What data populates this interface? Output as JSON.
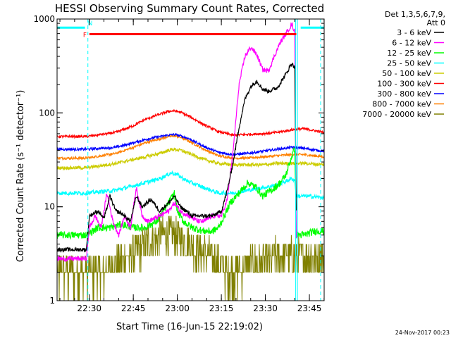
{
  "chart_data": {
    "type": "line",
    "title": "HESSI Observing Summary Count Rates, Corrected",
    "xlabel": "Start Time (16-Jun-15 22:19:02)",
    "ylabel": "Corrected Count Rate (s⁻¹ detector⁻¹)",
    "y_scale": "log",
    "ylim": [
      1,
      1000
    ],
    "xlim_minutes_after_start": [
      0,
      91
    ],
    "x_ticks": [
      {
        "label": "22:30",
        "min": 10.97
      },
      {
        "label": "22:45",
        "min": 25.97
      },
      {
        "label": "23:00",
        "min": 40.97
      },
      {
        "label": "23:15",
        "min": 55.97
      },
      {
        "label": "23:30",
        "min": 70.97
      },
      {
        "label": "23:45",
        "min": 85.97
      }
    ],
    "y_ticks": [
      {
        "label": "1",
        "value": 1
      },
      {
        "label": "10",
        "value": 10
      },
      {
        "label": "100",
        "value": 100
      },
      {
        "label": "1000",
        "value": 1000
      }
    ],
    "legend_header": [
      "Det 1,3,5,6,7,9,",
      "Att 0"
    ],
    "legend_position": "right",
    "footer_date": "24-Nov-2017 00:23",
    "flags": [
      {
        "label": "N",
        "color": "#00ffff",
        "value": 810,
        "segments": [
          [
            0,
            9.5
          ],
          [
            83,
            91
          ]
        ]
      },
      {
        "label": "F",
        "color": "#ff0000",
        "value": 690,
        "segments": [
          [
            11,
            81.5
          ]
        ]
      }
    ],
    "markers": [
      {
        "color": "#00ffff",
        "style": "dashed",
        "min": 10.5
      },
      {
        "color": "#00ffff",
        "style": "solid",
        "min": 81.3
      },
      {
        "color": "#00ffff",
        "style": "solid",
        "min": 81.9
      },
      {
        "color": "#00ffff",
        "style": "dashed",
        "min": 89.8
      }
    ],
    "series": [
      {
        "name": "3 - 6 keV",
        "color": "#000000",
        "noise": 0.05,
        "points": [
          [
            0,
            3.5
          ],
          [
            10,
            3.5
          ],
          [
            11,
            8
          ],
          [
            14,
            9
          ],
          [
            16,
            7.5
          ],
          [
            18,
            13
          ],
          [
            20,
            9
          ],
          [
            22,
            8.5
          ],
          [
            25,
            7
          ],
          [
            27,
            13
          ],
          [
            29,
            10
          ],
          [
            32,
            12
          ],
          [
            35,
            9
          ],
          [
            38,
            11
          ],
          [
            40,
            13
          ],
          [
            42,
            10
          ],
          [
            44,
            9
          ],
          [
            46,
            8
          ],
          [
            50,
            8
          ],
          [
            53,
            8
          ],
          [
            56,
            9
          ],
          [
            58,
            15
          ],
          [
            60,
            30
          ],
          [
            62,
            70
          ],
          [
            64,
            140
          ],
          [
            66,
            190
          ],
          [
            68,
            220
          ],
          [
            70,
            180
          ],
          [
            72,
            170
          ],
          [
            75,
            185
          ],
          [
            78,
            260
          ],
          [
            80,
            340
          ],
          [
            81,
            300
          ],
          [
            81.5,
            8
          ]
        ]
      },
      {
        "name": "6 - 12 keV",
        "color": "#ff00ff",
        "noise": 0.06,
        "points": [
          [
            0,
            2.8
          ],
          [
            10,
            2.8
          ],
          [
            11,
            6
          ],
          [
            13,
            8
          ],
          [
            15,
            6
          ],
          [
            17,
            14
          ],
          [
            19,
            7
          ],
          [
            21,
            5
          ],
          [
            23,
            8
          ],
          [
            25,
            6
          ],
          [
            27,
            16
          ],
          [
            29,
            8
          ],
          [
            31,
            7
          ],
          [
            35,
            8
          ],
          [
            38,
            9
          ],
          [
            40,
            11
          ],
          [
            42,
            9
          ],
          [
            45,
            8
          ],
          [
            48,
            7
          ],
          [
            50,
            7
          ],
          [
            53,
            8
          ],
          [
            56,
            8
          ],
          [
            58,
            12
          ],
          [
            60,
            40
          ],
          [
            62,
            200
          ],
          [
            64,
            400
          ],
          [
            66,
            500
          ],
          [
            68,
            420
          ],
          [
            70,
            290
          ],
          [
            72,
            280
          ],
          [
            74,
            400
          ],
          [
            76,
            560
          ],
          [
            78,
            700
          ],
          [
            80,
            880
          ],
          [
            81,
            720
          ],
          [
            81.5,
            4
          ]
        ]
      },
      {
        "name": "12 - 25 keV",
        "color": "#00ff00",
        "noise": 0.09,
        "points": [
          [
            0,
            5
          ],
          [
            10,
            5
          ],
          [
            14,
            6
          ],
          [
            18,
            6
          ],
          [
            22,
            6.5
          ],
          [
            26,
            6
          ],
          [
            30,
            6
          ],
          [
            34,
            7
          ],
          [
            38,
            11
          ],
          [
            40,
            14
          ],
          [
            41,
            9
          ],
          [
            43,
            7
          ],
          [
            46,
            6
          ],
          [
            50,
            5.5
          ],
          [
            53,
            5.5
          ],
          [
            55,
            6
          ],
          [
            57,
            8
          ],
          [
            59,
            11
          ],
          [
            62,
            14
          ],
          [
            65,
            18
          ],
          [
            68,
            16
          ],
          [
            70,
            13
          ],
          [
            73,
            15
          ],
          [
            76,
            18
          ],
          [
            78,
            22
          ],
          [
            80,
            35
          ],
          [
            81,
            42
          ],
          [
            81.5,
            5
          ],
          [
            84,
            5
          ],
          [
            88,
            5.5
          ],
          [
            91,
            5.5
          ]
        ]
      },
      {
        "name": "25 - 50 keV",
        "color": "#00ffff",
        "noise": 0.05,
        "points": [
          [
            0,
            14
          ],
          [
            10,
            14
          ],
          [
            20,
            15
          ],
          [
            30,
            18
          ],
          [
            35,
            20
          ],
          [
            39,
            23
          ],
          [
            41,
            22
          ],
          [
            44,
            19
          ],
          [
            50,
            16
          ],
          [
            55,
            14
          ],
          [
            60,
            14
          ],
          [
            65,
            15
          ],
          [
            70,
            16
          ],
          [
            75,
            17
          ],
          [
            80,
            20
          ],
          [
            81,
            19
          ],
          [
            81.5,
            13
          ],
          [
            85,
            13
          ],
          [
            91,
            12.5
          ]
        ]
      },
      {
        "name": "50 - 100 keV",
        "color": "#cccc00",
        "noise": 0.04,
        "points": [
          [
            0,
            26
          ],
          [
            10,
            26
          ],
          [
            20,
            29
          ],
          [
            30,
            34
          ],
          [
            35,
            37
          ],
          [
            38,
            40
          ],
          [
            40,
            41
          ],
          [
            42,
            40
          ],
          [
            45,
            37
          ],
          [
            50,
            32
          ],
          [
            55,
            29
          ],
          [
            60,
            28
          ],
          [
            65,
            28
          ],
          [
            70,
            28
          ],
          [
            75,
            29
          ],
          [
            80,
            29
          ],
          [
            85,
            29
          ],
          [
            91,
            28
          ]
        ]
      },
      {
        "name": "100 - 300 keV",
        "color": "#ff0000",
        "noise": 0.03,
        "points": [
          [
            0,
            56
          ],
          [
            10,
            56
          ],
          [
            20,
            62
          ],
          [
            26,
            73
          ],
          [
            30,
            85
          ],
          [
            35,
            97
          ],
          [
            38,
            104
          ],
          [
            40,
            105
          ],
          [
            42,
            102
          ],
          [
            45,
            92
          ],
          [
            50,
            75
          ],
          [
            55,
            63
          ],
          [
            60,
            58
          ],
          [
            65,
            59
          ],
          [
            70,
            60
          ],
          [
            75,
            62
          ],
          [
            80,
            66
          ],
          [
            84,
            68
          ],
          [
            91,
            62
          ]
        ]
      },
      {
        "name": "300 - 800 keV",
        "color": "#0000ff",
        "noise": 0.03,
        "points": [
          [
            0,
            41
          ],
          [
            10,
            41
          ],
          [
            20,
            43
          ],
          [
            26,
            48
          ],
          [
            30,
            52
          ],
          [
            35,
            56
          ],
          [
            38,
            58
          ],
          [
            40,
            59
          ],
          [
            42,
            57
          ],
          [
            45,
            53
          ],
          [
            50,
            44
          ],
          [
            55,
            38
          ],
          [
            60,
            36
          ],
          [
            65,
            37
          ],
          [
            70,
            39
          ],
          [
            75,
            41
          ],
          [
            80,
            43
          ],
          [
            84,
            42
          ],
          [
            91,
            39
          ]
        ]
      },
      {
        "name": "800 - 7000 keV",
        "color": "#ff8000",
        "noise": 0.03,
        "points": [
          [
            0,
            33
          ],
          [
            10,
            33
          ],
          [
            20,
            37
          ],
          [
            26,
            43
          ],
          [
            30,
            48
          ],
          [
            35,
            53
          ],
          [
            38,
            56
          ],
          [
            40,
            57
          ],
          [
            42,
            55
          ],
          [
            45,
            50
          ],
          [
            50,
            41
          ],
          [
            55,
            35
          ],
          [
            60,
            33
          ],
          [
            65,
            33
          ],
          [
            70,
            34
          ],
          [
            75,
            35
          ],
          [
            80,
            36
          ],
          [
            84,
            36
          ],
          [
            91,
            34
          ]
        ]
      },
      {
        "name": "7000 - 20000 keV",
        "color": "#808000",
        "noise": 0.18,
        "levels": true,
        "points": [
          [
            0,
            2
          ],
          [
            10,
            2
          ],
          [
            15,
            2
          ],
          [
            20,
            2.5
          ],
          [
            25,
            3
          ],
          [
            30,
            4
          ],
          [
            35,
            5
          ],
          [
            40,
            5
          ],
          [
            45,
            4
          ],
          [
            48,
            3.5
          ],
          [
            52,
            3
          ],
          [
            55,
            2.5
          ],
          [
            58,
            2
          ],
          [
            62,
            2
          ],
          [
            66,
            2.5
          ],
          [
            70,
            2.5
          ],
          [
            75,
            3
          ],
          [
            80,
            3
          ],
          [
            84,
            3
          ],
          [
            91,
            3
          ]
        ]
      }
    ]
  }
}
